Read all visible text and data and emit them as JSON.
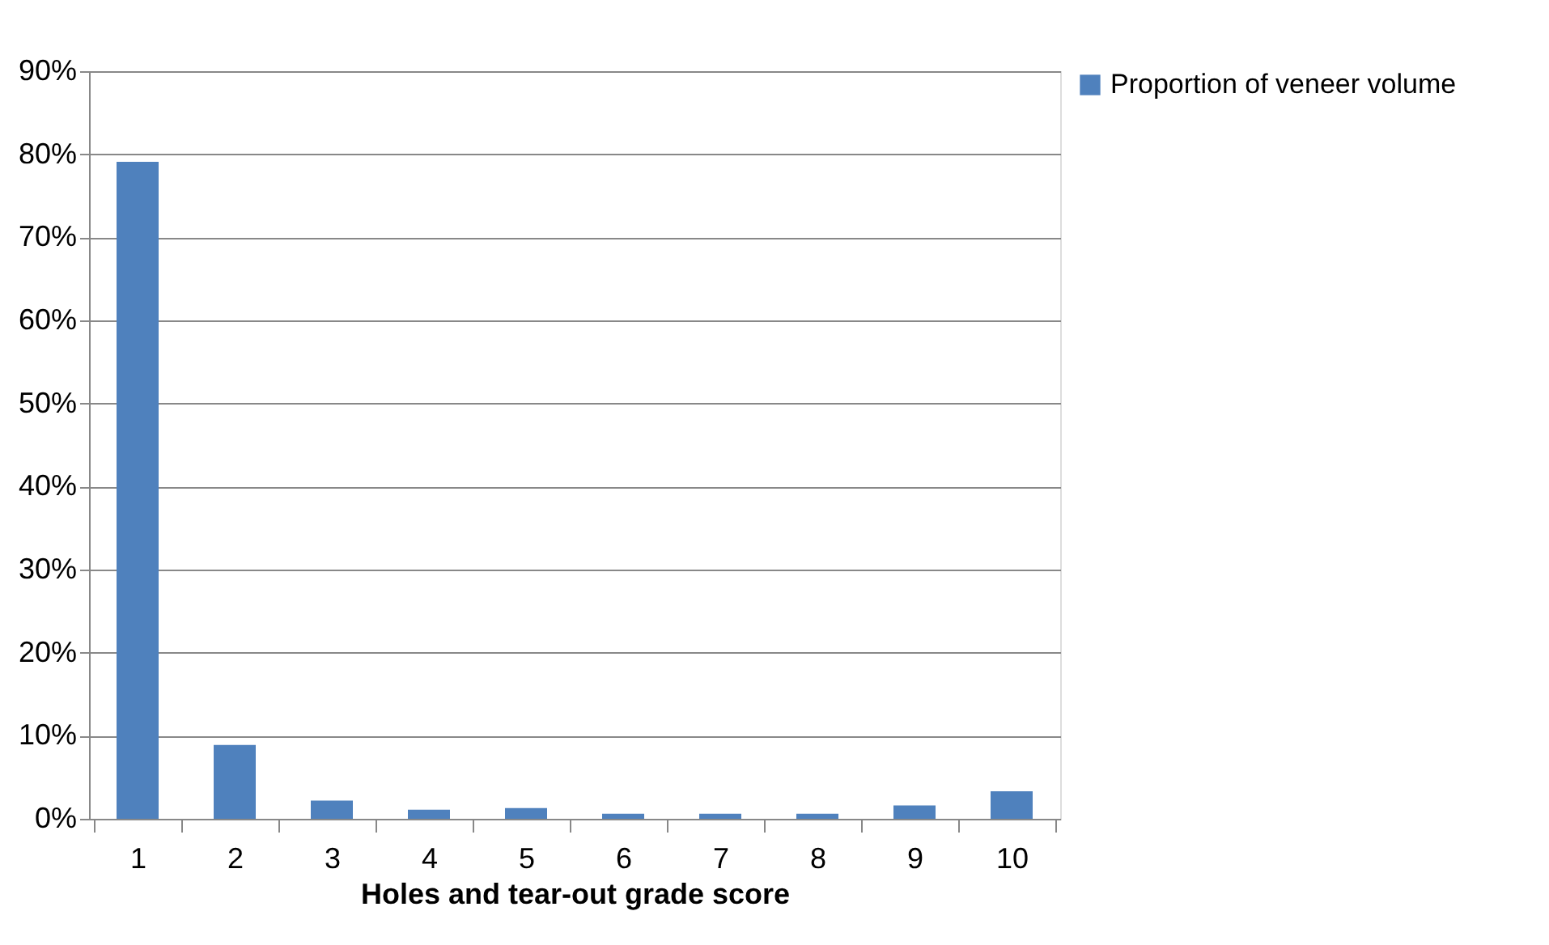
{
  "chart_data": {
    "type": "bar",
    "xlabel": "Holes and tear-out grade score",
    "categories": [
      "1",
      "2",
      "3",
      "4",
      "5",
      "6",
      "7",
      "8",
      "9",
      "10"
    ],
    "series": [
      {
        "name": "Proportion of veneer volume",
        "color": "#4f81bd",
        "values": [
          79.1,
          8.9,
          2.2,
          1.1,
          1.3,
          0.6,
          0.6,
          0.6,
          1.6,
          3.3
        ]
      }
    ],
    "ylim": [
      0,
      90
    ],
    "yticks": [
      {
        "value": 0,
        "label": "0%"
      },
      {
        "value": 10,
        "label": "10%"
      },
      {
        "value": 20,
        "label": "20%"
      },
      {
        "value": 30,
        "label": "30%"
      },
      {
        "value": 40,
        "label": "40%"
      },
      {
        "value": 50,
        "label": "50%"
      },
      {
        "value": 60,
        "label": "60%"
      },
      {
        "value": 70,
        "label": "70%"
      },
      {
        "value": 80,
        "label": "80%"
      },
      {
        "value": 90,
        "label": "90%"
      }
    ],
    "grid": "y",
    "legend": "right"
  }
}
